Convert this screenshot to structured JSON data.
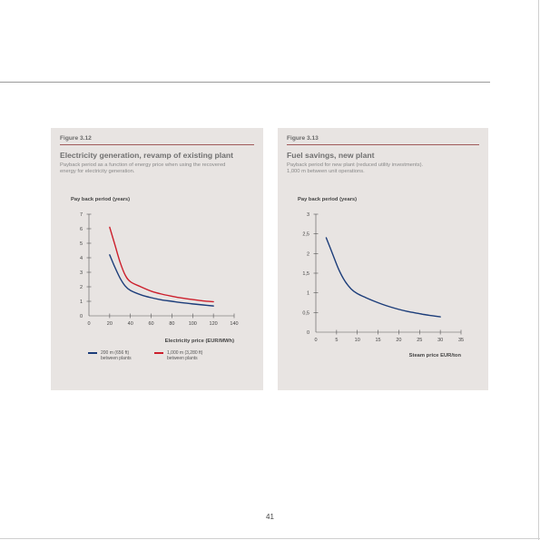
{
  "page_number": "41",
  "colors": {
    "panel_bg": "#e8e4e2",
    "series_blue": "#1c3d7a",
    "series_red": "#cc1f2c"
  },
  "figures": [
    {
      "label": "Figure 3.12",
      "title": "Electricity generation, revamp of existing plant",
      "subtitle_lines": [
        "Payback period as a function of energy price when using the recovered",
        "energy for electricity generation."
      ],
      "legend": [
        {
          "lines": [
            "200 m (656 ft)",
            "between plants"
          ]
        },
        {
          "lines": [
            "1,000 m (3,280 ft)",
            "between plants"
          ]
        }
      ]
    },
    {
      "label": "Figure 3.13",
      "title": "Fuel savings, new plant",
      "subtitle_lines": [
        "Payback period for new plant (reduced utility investments).",
        "1,000 m between unit operations."
      ]
    }
  ],
  "chart_data": [
    {
      "type": "line",
      "ylabel": "Pay back period (years)",
      "xlabel": "Electricity price (EUR/MWh)",
      "xlim": [
        0,
        140
      ],
      "ylim": [
        0,
        7
      ],
      "x_ticks": [
        "0",
        "20",
        "40",
        "60",
        "80",
        "100",
        "120",
        "140"
      ],
      "y_ticks": [
        "0",
        "1",
        "2",
        "3",
        "4",
        "5",
        "6",
        "7"
      ],
      "grid": false,
      "series": [
        {
          "name": "200 m (656 ft) between plants",
          "color": "#1c3d7a",
          "x": [
            20,
            25,
            30,
            35,
            40,
            50,
            60,
            70,
            80,
            90,
            100,
            110,
            120
          ],
          "y": [
            4.2,
            3.35,
            2.6,
            2.05,
            1.75,
            1.45,
            1.25,
            1.1,
            1.0,
            0.9,
            0.82,
            0.75,
            0.68
          ]
        },
        {
          "name": "1,000 m (3,280 ft) between plants",
          "color": "#cc1f2c",
          "x": [
            20,
            25,
            30,
            35,
            40,
            50,
            60,
            70,
            80,
            90,
            100,
            110,
            120
          ],
          "y": [
            6.1,
            4.9,
            3.7,
            2.8,
            2.35,
            2.0,
            1.7,
            1.5,
            1.35,
            1.22,
            1.12,
            1.03,
            0.97
          ]
        }
      ]
    },
    {
      "type": "line",
      "ylabel": "Pay back period (years)",
      "xlabel": "Steam price EUR/ton",
      "xlim": [
        0,
        35
      ],
      "ylim": [
        0,
        3
      ],
      "x_ticks": [
        "0",
        "5",
        "10",
        "15",
        "20",
        "25",
        "30",
        "35"
      ],
      "y_ticks": [
        "0",
        "0,5",
        "1",
        "1,5",
        "2",
        "2,5",
        "3"
      ],
      "y_tick_values": [
        0,
        0.5,
        1,
        1.5,
        2,
        2.5,
        3
      ],
      "grid": false,
      "series": [
        {
          "color": "#1c3d7a",
          "x": [
            2.5,
            4,
            5.5,
            7,
            8.5,
            10,
            12,
            14,
            16,
            18,
            20,
            22,
            24,
            26,
            28,
            30
          ],
          "y": [
            2.4,
            2.0,
            1.6,
            1.3,
            1.1,
            0.98,
            0.88,
            0.79,
            0.71,
            0.64,
            0.58,
            0.53,
            0.49,
            0.45,
            0.42,
            0.39
          ]
        }
      ]
    }
  ]
}
